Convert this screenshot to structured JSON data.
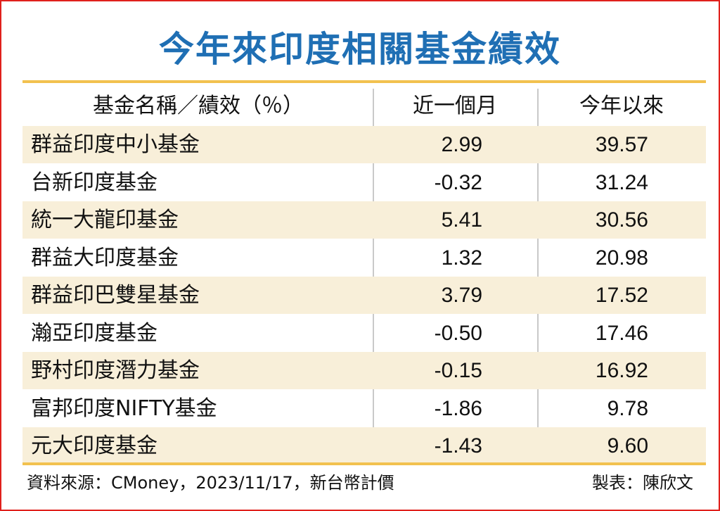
{
  "title": "今年來印度相關基金績效",
  "chart_data": {
    "type": "table",
    "columns": [
      "基金名稱／績效（％）",
      "近一個月",
      "今年以來"
    ],
    "rows": [
      {
        "name": "群益印度中小基金",
        "month": "2.99",
        "ytd": "39.57"
      },
      {
        "name": "台新印度基金",
        "month": "-0.32",
        "ytd": "31.24"
      },
      {
        "name": "統一大龍印基金",
        "month": "5.41",
        "ytd": "30.56"
      },
      {
        "name": "群益大印度基金",
        "month": "1.32",
        "ytd": "20.98"
      },
      {
        "name": "群益印巴雙星基金",
        "month": "3.79",
        "ytd": "17.52"
      },
      {
        "name": "瀚亞印度基金",
        "month": "-0.50",
        "ytd": "17.46"
      },
      {
        "name": "野村印度潛力基金",
        "month": "-0.15",
        "ytd": "16.92"
      },
      {
        "name": "富邦印度NIFTY基金",
        "month": "-1.86",
        "ytd": "9.78"
      },
      {
        "name": "元大印度基金",
        "month": "-1.43",
        "ytd": "9.60"
      }
    ]
  },
  "footer": {
    "source": "資料來源：CMoney，2023/11/17，新台幣計價",
    "author": "製表：陳欣文"
  },
  "colors": {
    "title": "#1f6fb4",
    "border": "#e0201c",
    "rule": "#f2c14f",
    "row_shade": "#f8efd9"
  }
}
